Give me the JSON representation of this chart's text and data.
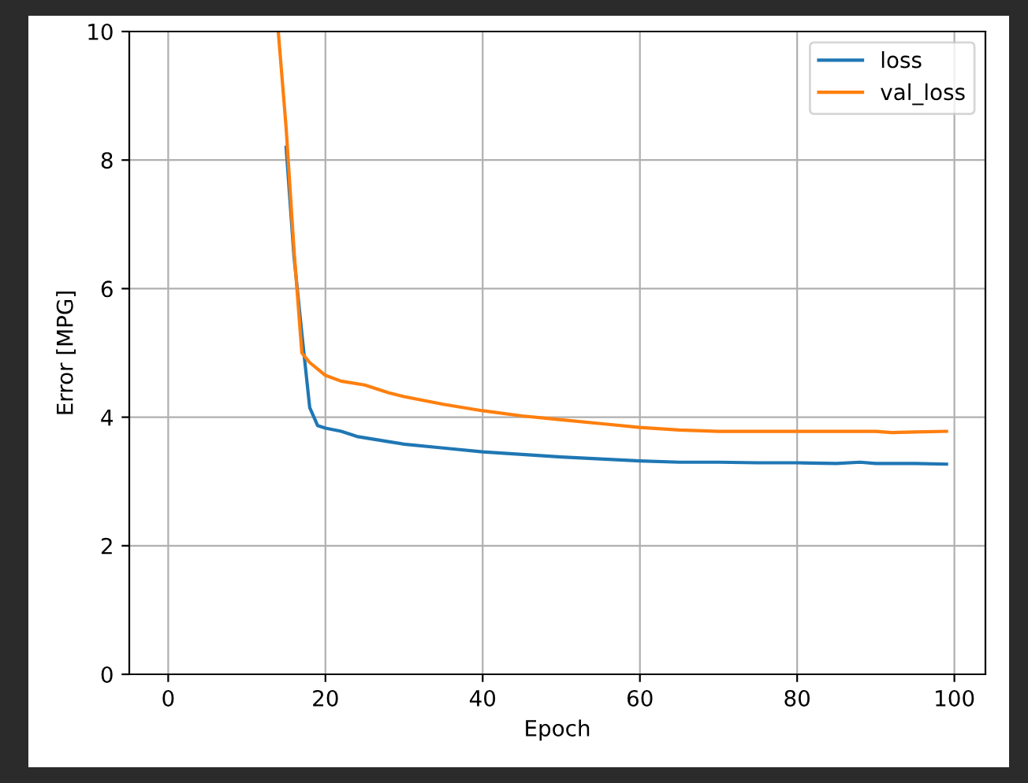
{
  "chart_data": {
    "type": "line",
    "xlabel": "Epoch",
    "ylabel": "Error [MPG]",
    "xlim": [
      -4.95,
      103.95
    ],
    "xticks": [
      0,
      20,
      40,
      60,
      80,
      100
    ],
    "ylim": [
      0,
      10
    ],
    "yticks": [
      0,
      2,
      4,
      6,
      8,
      10
    ],
    "grid": true,
    "legend": "top right",
    "series": [
      {
        "name": "loss",
        "color": "#1f77b4",
        "x": [
          15,
          16,
          17,
          18,
          19,
          20,
          22,
          24,
          26,
          28,
          30,
          35,
          40,
          45,
          50,
          55,
          60,
          65,
          70,
          75,
          80,
          85,
          88,
          90,
          95,
          99
        ],
        "values": [
          8.2,
          6.5,
          5.3,
          4.15,
          3.87,
          3.83,
          3.78,
          3.7,
          3.66,
          3.62,
          3.58,
          3.52,
          3.46,
          3.42,
          3.38,
          3.35,
          3.32,
          3.3,
          3.3,
          3.29,
          3.29,
          3.28,
          3.3,
          3.28,
          3.28,
          3.27
        ]
      },
      {
        "name": "val_loss",
        "color": "#ff7f0e",
        "x": [
          14,
          15,
          16,
          17,
          18,
          19,
          20,
          22,
          25,
          28,
          30,
          35,
          40,
          45,
          50,
          55,
          60,
          65,
          70,
          75,
          80,
          85,
          90,
          92,
          95,
          99
        ],
        "values": [
          10,
          8.5,
          6.6,
          5.0,
          4.85,
          4.75,
          4.65,
          4.56,
          4.5,
          4.38,
          4.32,
          4.2,
          4.1,
          4.02,
          3.96,
          3.9,
          3.84,
          3.8,
          3.78,
          3.78,
          3.78,
          3.78,
          3.78,
          3.76,
          3.77,
          3.78
        ]
      }
    ]
  }
}
